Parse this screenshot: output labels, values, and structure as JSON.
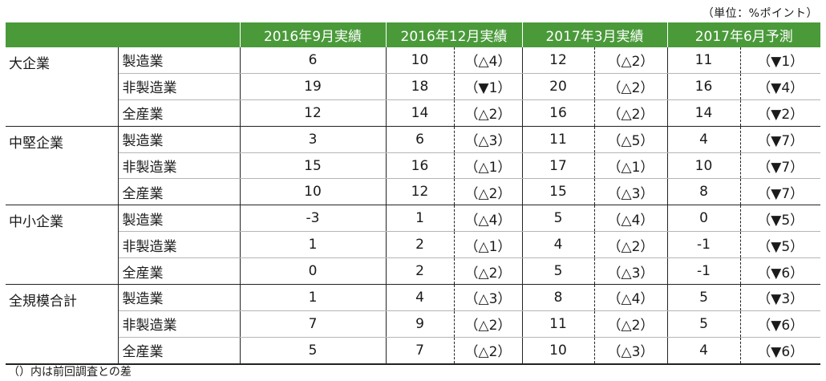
{
  "unit_label": "（単位：%ポイント）",
  "headers": [
    "2016年9月実績",
    "2016年12月実績",
    "2017年3月実績",
    "2017年6月予測"
  ],
  "groups": [
    {
      "name": "大企業",
      "rows": [
        {
          "label": "製造業",
          "sep": "6",
          "dec": "10",
          "dec_diff": "（△4）",
          "mar": "12",
          "mar_diff": "（△2）",
          "jun": "11",
          "jun_diff": "（▼1）"
        },
        {
          "label": "非製造業",
          "sep": "19",
          "dec": "18",
          "dec_diff": "（▼1）",
          "mar": "20",
          "mar_diff": "（△2）",
          "jun": "16",
          "jun_diff": "（▼4）"
        },
        {
          "label": "全産業",
          "sep": "12",
          "dec": "14",
          "dec_diff": "（△2）",
          "mar": "16",
          "mar_diff": "（△2）",
          "jun": "14",
          "jun_diff": "（▼2）"
        }
      ]
    },
    {
      "name": "中堅企業",
      "rows": [
        {
          "label": "製造業",
          "sep": "3",
          "dec": "6",
          "dec_diff": "（△3）",
          "mar": "11",
          "mar_diff": "（△5）",
          "jun": "4",
          "jun_diff": "（▼7）"
        },
        {
          "label": "非製造業",
          "sep": "15",
          "dec": "16",
          "dec_diff": "（△1）",
          "mar": "17",
          "mar_diff": "（△1）",
          "jun": "10",
          "jun_diff": "（▼7）"
        },
        {
          "label": "全産業",
          "sep": "10",
          "dec": "12",
          "dec_diff": "（△2）",
          "mar": "15",
          "mar_diff": "（△3）",
          "jun": "8",
          "jun_diff": "（▼7）"
        }
      ]
    },
    {
      "name": "中小企業",
      "rows": [
        {
          "label": "製造業",
          "sep": "-3",
          "dec": "1",
          "dec_diff": "（△4）",
          "mar": "5",
          "mar_diff": "（△4）",
          "jun": "0",
          "jun_diff": "（▼5）"
        },
        {
          "label": "非製造業",
          "sep": "1",
          "dec": "2",
          "dec_diff": "（△1）",
          "mar": "4",
          "mar_diff": "（△2）",
          "jun": "-1",
          "jun_diff": "（▼5）"
        },
        {
          "label": "全産業",
          "sep": "0",
          "dec": "2",
          "dec_diff": "（△2）",
          "mar": "5",
          "mar_diff": "（△3）",
          "jun": "-1",
          "jun_diff": "（▼6）"
        }
      ]
    },
    {
      "name": "全規模合計",
      "rows": [
        {
          "label": "製造業",
          "sep": "1",
          "dec": "4",
          "dec_diff": "（△3）",
          "mar": "8",
          "mar_diff": "（△4）",
          "jun": "5",
          "jun_diff": "（▼3）"
        },
        {
          "label": "非製造業",
          "sep": "7",
          "dec": "9",
          "dec_diff": "（△2）",
          "mar": "11",
          "mar_diff": "（△2）",
          "jun": "5",
          "jun_diff": "（▼6）"
        },
        {
          "label": "全産業",
          "sep": "5",
          "dec": "7",
          "dec_diff": "（△2）",
          "mar": "10",
          "mar_diff": "（△3）",
          "jun": "4",
          "jun_diff": "（▼6）"
        }
      ]
    }
  ],
  "note": "（）内は前回調査との差",
  "colors": {
    "header_bg": "#4a9a3a",
    "header_text": "#ffffff"
  }
}
